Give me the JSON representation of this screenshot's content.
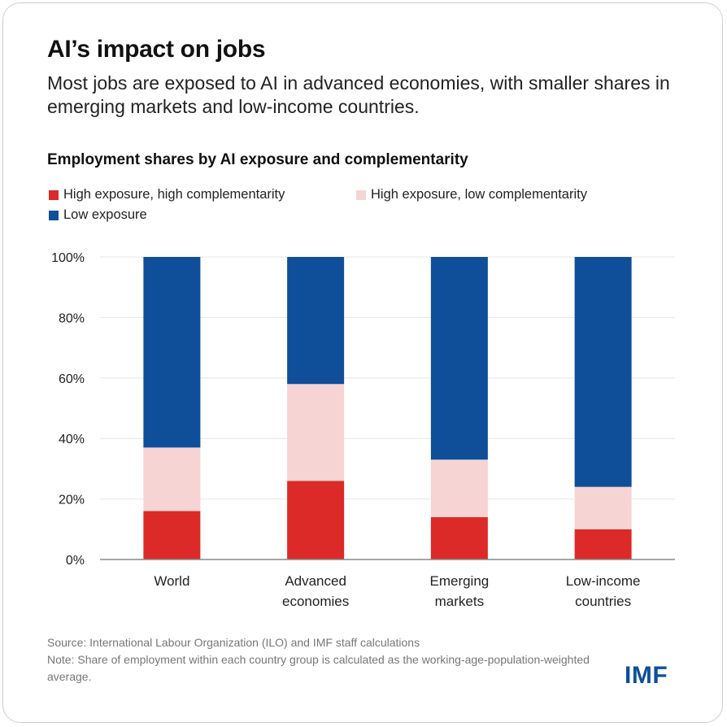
{
  "title": "AI’s impact on jobs",
  "subtitle": "Most jobs are exposed to AI in advanced economies, with smaller shares in emerging markets and low-income countries.",
  "source": "Source: International Labour Organization (ILO) and IMF staff calculations",
  "note": "Note: Share of employment within each country group is calculated as the working-age-population-weighted average.",
  "logo": "IMF",
  "chart_data": {
    "type": "bar",
    "stacked": true,
    "title": "Employment shares by AI exposure and complementarity",
    "categories": [
      "World",
      "Advanced economies",
      "Emerging markets",
      "Low-income countries"
    ],
    "series": [
      {
        "name": "High exposure, high complementarity",
        "color": "#dc2a28",
        "values": [
          16,
          26,
          14,
          10
        ]
      },
      {
        "name": "High exposure, low complementarity",
        "color": "#f6d4d3",
        "values": [
          21,
          32,
          19,
          14
        ]
      },
      {
        "name": "Low exposure",
        "color": "#0f4f99",
        "values": [
          63,
          42,
          67,
          76
        ]
      }
    ],
    "ylim": [
      0,
      100
    ],
    "yticks": [
      "0%",
      "20%",
      "40%",
      "60%",
      "80%",
      "100%"
    ],
    "grid": true,
    "legend": "top"
  }
}
